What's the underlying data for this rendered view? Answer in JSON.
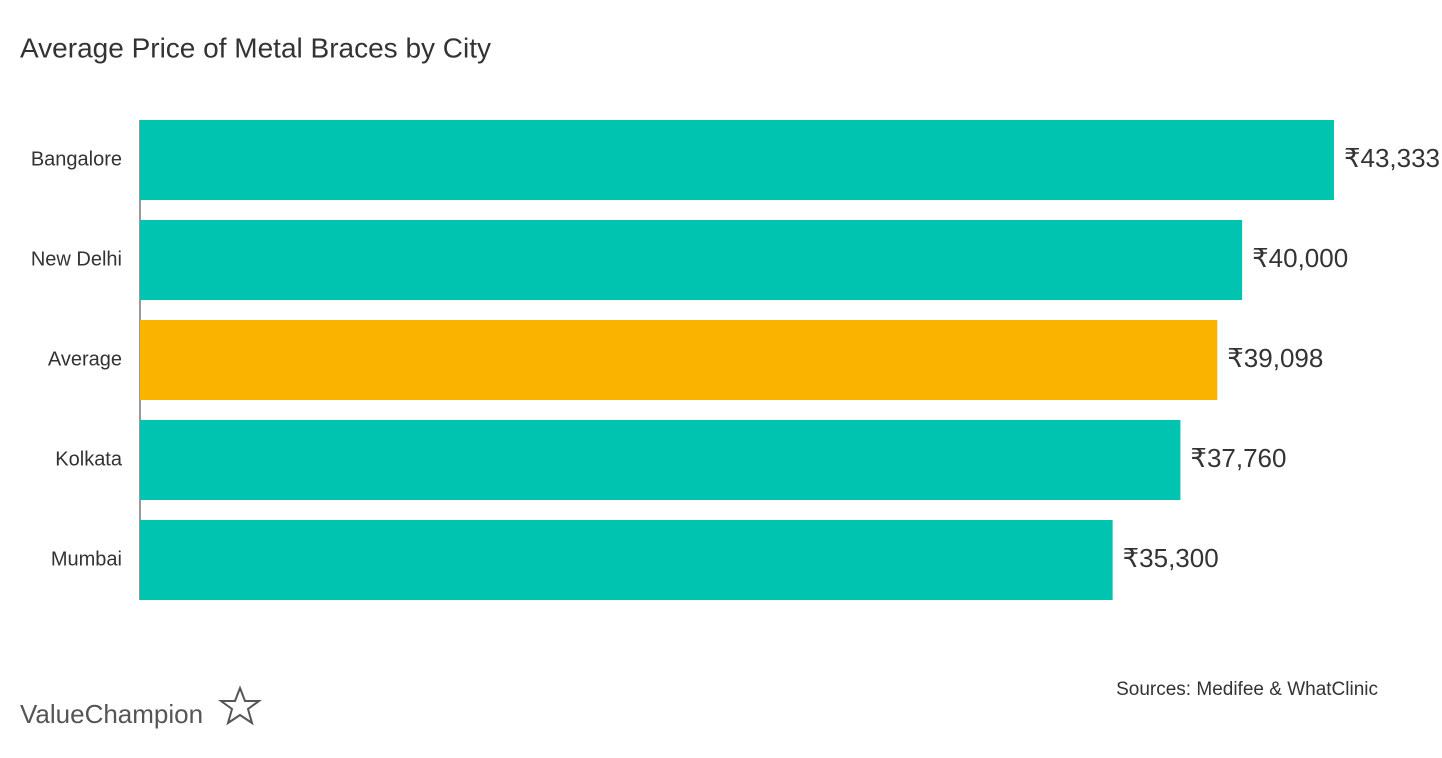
{
  "chart_data": {
    "type": "hbar",
    "title": "Average Price of Metal Braces by City",
    "categories": [
      "Bangalore",
      "New Delhi",
      "Average",
      "Kolkata",
      "Mumbai"
    ],
    "values": [
      43333,
      40000,
      39098,
      37760,
      35300
    ],
    "value_labels": [
      "₹43,333",
      "₹40,000",
      "₹39,098",
      "₹37,760",
      "₹35,300"
    ],
    "colors": [
      "#00c4b0",
      "#00c4b0",
      "#f9b400",
      "#00c4b0",
      "#00c4b0"
    ],
    "xlim": [
      0,
      47000
    ],
    "source": "Sources: Medifee & WhatClinic",
    "logo": "ValueChampion"
  }
}
